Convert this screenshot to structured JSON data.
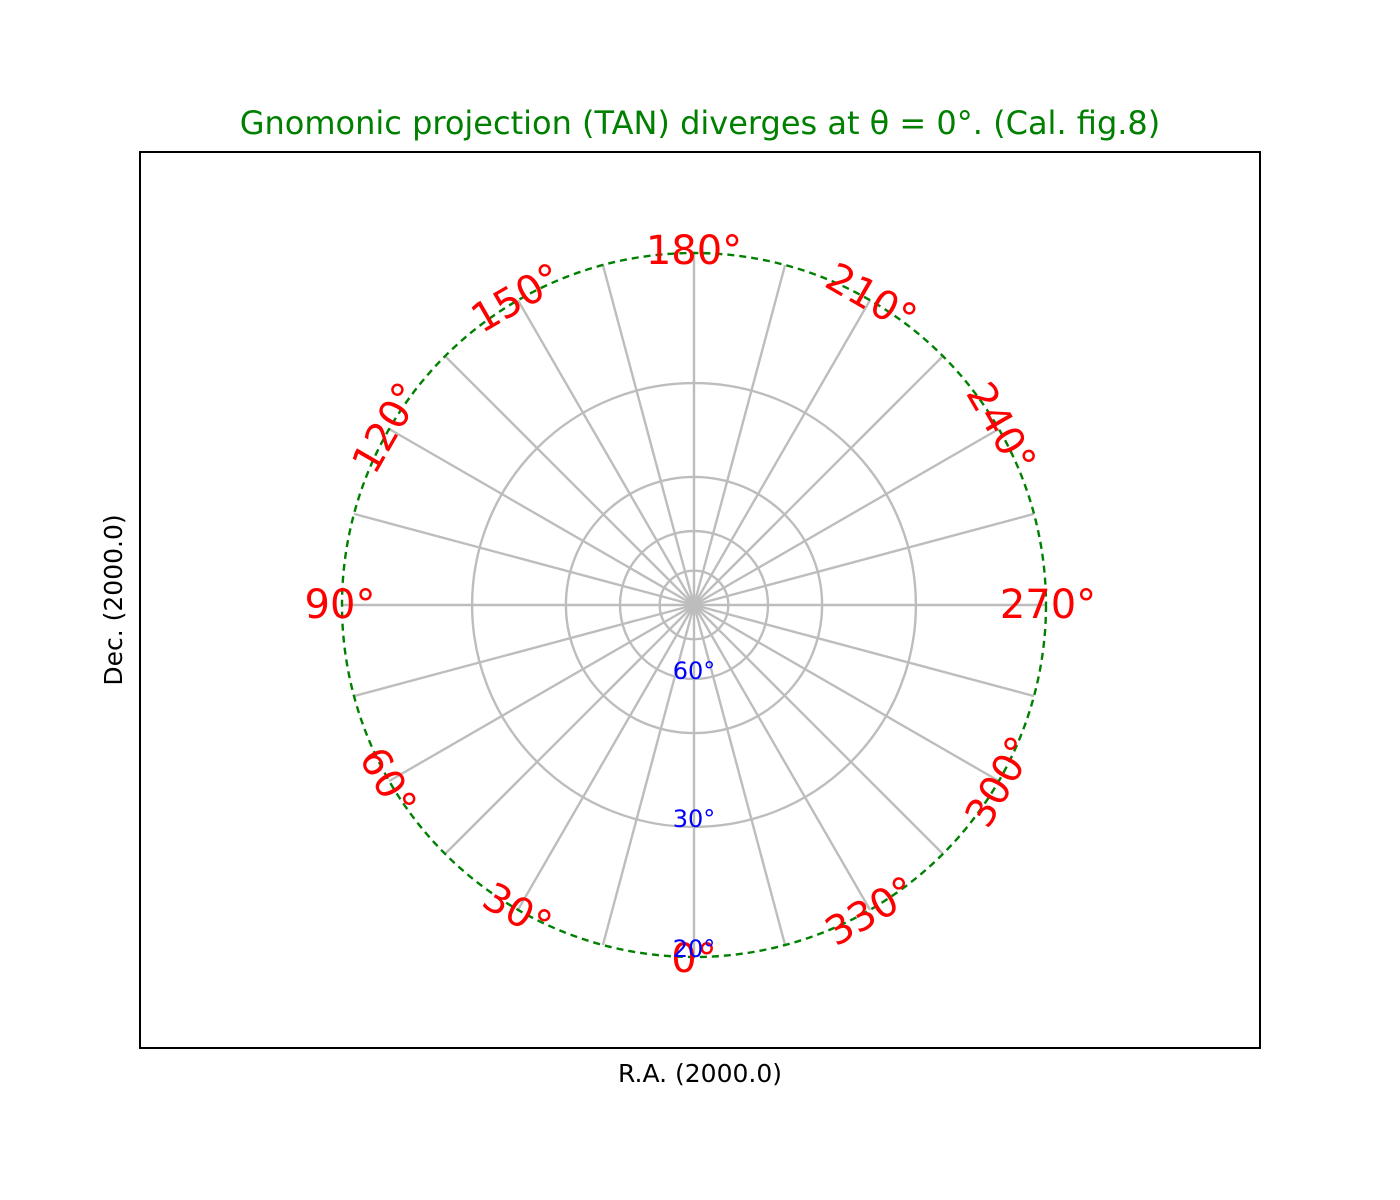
{
  "chart_data": {
    "type": "polar-projection",
    "title": "Gnomonic projection (TAN) diverges at θ = 0°. (Cal. fig.8)",
    "xlabel": "R.A. (2000.0)",
    "ylabel": "Dec. (2000.0)",
    "projection": "TAN",
    "ra_meridians_deg": [
      0,
      15,
      30,
      45,
      60,
      75,
      90,
      105,
      120,
      135,
      150,
      165,
      180,
      195,
      210,
      225,
      240,
      255,
      270,
      285,
      300,
      315,
      330,
      345
    ],
    "ra_labels": [
      {
        "value": 0,
        "text": "0°"
      },
      {
        "value": 30,
        "text": "30°"
      },
      {
        "value": 60,
        "text": "60°"
      },
      {
        "value": 90,
        "text": "90°"
      },
      {
        "value": 120,
        "text": "120°"
      },
      {
        "value": 150,
        "text": "150°"
      },
      {
        "value": 180,
        "text": "180°"
      },
      {
        "value": 210,
        "text": "210°"
      },
      {
        "value": 240,
        "text": "240°"
      },
      {
        "value": 270,
        "text": "270°"
      },
      {
        "value": 300,
        "text": "300°"
      },
      {
        "value": 330,
        "text": "330°"
      }
    ],
    "dec_parallels_deg": [
      20,
      30,
      45,
      60,
      75
    ],
    "dec_labels": [
      {
        "value": 60,
        "text": "60°"
      },
      {
        "value": 30,
        "text": "30°"
      },
      {
        "value": 20,
        "text": "20°"
      }
    ],
    "boundary_dec_deg": 20,
    "colors": {
      "title": "#008000",
      "boundary": "#008000",
      "ra_labels": "#ff0000",
      "dec_labels": "#0000ff",
      "grid": "#bdbdbd"
    },
    "grid": true
  }
}
